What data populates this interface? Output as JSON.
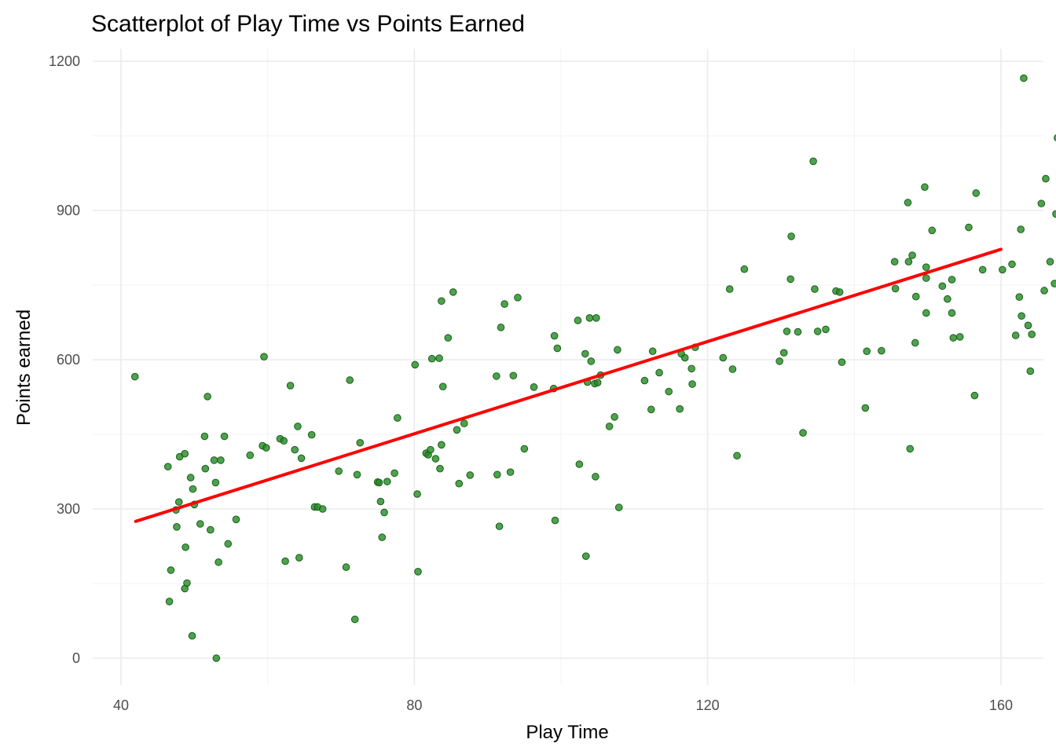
{
  "chart_data": {
    "type": "scatter",
    "title": "Scatterplot of Play Time vs Points Earned",
    "xlabel": "Play Time",
    "ylabel": "Points earned",
    "xlim": [
      38,
      166
    ],
    "ylim": [
      -60,
      1232
    ],
    "x_ticks": [
      40,
      80,
      120,
      160
    ],
    "y_ticks": [
      0,
      300,
      600,
      900,
      1200
    ],
    "grid": true,
    "legend": "none",
    "point_color": "#228B22",
    "line_color": "#ff0000",
    "fit_line": {
      "x": [
        42,
        160
      ],
      "y": [
        275,
        822
      ]
    },
    "points": [
      {
        "x": 41.9,
        "y": 566
      },
      {
        "x": 46.4,
        "y": 385
      },
      {
        "x": 46.6,
        "y": 114
      },
      {
        "x": 46.8,
        "y": 177
      },
      {
        "x": 47.5,
        "y": 298
      },
      {
        "x": 47.6,
        "y": 264
      },
      {
        "x": 47.9,
        "y": 314
      },
      {
        "x": 48.0,
        "y": 405
      },
      {
        "x": 48.7,
        "y": 411
      },
      {
        "x": 48.7,
        "y": 140
      },
      {
        "x": 48.8,
        "y": 223
      },
      {
        "x": 49.0,
        "y": 151
      },
      {
        "x": 49.5,
        "y": 363
      },
      {
        "x": 49.7,
        "y": 45
      },
      {
        "x": 49.8,
        "y": 340
      },
      {
        "x": 50.0,
        "y": 309
      },
      {
        "x": 50.8,
        "y": 270
      },
      {
        "x": 51.4,
        "y": 446
      },
      {
        "x": 51.5,
        "y": 381
      },
      {
        "x": 51.8,
        "y": 526
      },
      {
        "x": 52.2,
        "y": 258
      },
      {
        "x": 52.7,
        "y": 398
      },
      {
        "x": 52.9,
        "y": 353
      },
      {
        "x": 53.0,
        "y": 0
      },
      {
        "x": 53.3,
        "y": 193
      },
      {
        "x": 53.6,
        "y": 398
      },
      {
        "x": 54.1,
        "y": 446
      },
      {
        "x": 54.6,
        "y": 230
      },
      {
        "x": 55.7,
        "y": 279
      },
      {
        "x": 57.6,
        "y": 408
      },
      {
        "x": 59.3,
        "y": 427
      },
      {
        "x": 59.5,
        "y": 606
      },
      {
        "x": 59.8,
        "y": 423
      },
      {
        "x": 61.7,
        "y": 441
      },
      {
        "x": 62.2,
        "y": 437
      },
      {
        "x": 62.4,
        "y": 195
      },
      {
        "x": 63.1,
        "y": 548
      },
      {
        "x": 63.7,
        "y": 419
      },
      {
        "x": 64.1,
        "y": 466
      },
      {
        "x": 64.3,
        "y": 202
      },
      {
        "x": 64.6,
        "y": 402
      },
      {
        "x": 66.0,
        "y": 449
      },
      {
        "x": 66.4,
        "y": 304
      },
      {
        "x": 66.8,
        "y": 304
      },
      {
        "x": 67.5,
        "y": 300
      },
      {
        "x": 69.7,
        "y": 376
      },
      {
        "x": 70.7,
        "y": 183
      },
      {
        "x": 71.2,
        "y": 559
      },
      {
        "x": 71.9,
        "y": 78
      },
      {
        "x": 72.2,
        "y": 369
      },
      {
        "x": 72.6,
        "y": 433
      },
      {
        "x": 75.0,
        "y": 354
      },
      {
        "x": 75.2,
        "y": 353
      },
      {
        "x": 75.4,
        "y": 315
      },
      {
        "x": 75.6,
        "y": 243
      },
      {
        "x": 75.9,
        "y": 293
      },
      {
        "x": 76.3,
        "y": 355
      },
      {
        "x": 77.3,
        "y": 372
      },
      {
        "x": 77.7,
        "y": 483
      },
      {
        "x": 80.1,
        "y": 590
      },
      {
        "x": 80.4,
        "y": 330
      },
      {
        "x": 80.5,
        "y": 174
      },
      {
        "x": 81.6,
        "y": 412
      },
      {
        "x": 81.9,
        "y": 409
      },
      {
        "x": 82.2,
        "y": 419
      },
      {
        "x": 82.4,
        "y": 602
      },
      {
        "x": 82.9,
        "y": 401
      },
      {
        "x": 83.4,
        "y": 603
      },
      {
        "x": 83.5,
        "y": 381
      },
      {
        "x": 83.7,
        "y": 718
      },
      {
        "x": 83.7,
        "y": 429
      },
      {
        "x": 83.9,
        "y": 546
      },
      {
        "x": 84.6,
        "y": 644
      },
      {
        "x": 85.3,
        "y": 736
      },
      {
        "x": 85.8,
        "y": 459
      },
      {
        "x": 86.1,
        "y": 351
      },
      {
        "x": 86.8,
        "y": 472
      },
      {
        "x": 87.6,
        "y": 368
      },
      {
        "x": 91.2,
        "y": 567
      },
      {
        "x": 91.3,
        "y": 369
      },
      {
        "x": 91.6,
        "y": 265
      },
      {
        "x": 91.8,
        "y": 665
      },
      {
        "x": 92.3,
        "y": 712
      },
      {
        "x": 93.1,
        "y": 374
      },
      {
        "x": 93.5,
        "y": 568
      },
      {
        "x": 94.1,
        "y": 725
      },
      {
        "x": 95.0,
        "y": 421
      },
      {
        "x": 96.3,
        "y": 545
      },
      {
        "x": 99.0,
        "y": 542
      },
      {
        "x": 99.1,
        "y": 648
      },
      {
        "x": 99.2,
        "y": 277
      },
      {
        "x": 99.5,
        "y": 623
      },
      {
        "x": 102.3,
        "y": 679
      },
      {
        "x": 102.5,
        "y": 390
      },
      {
        "x": 103.3,
        "y": 612
      },
      {
        "x": 103.4,
        "y": 205
      },
      {
        "x": 103.6,
        "y": 555
      },
      {
        "x": 103.9,
        "y": 684
      },
      {
        "x": 104.1,
        "y": 597
      },
      {
        "x": 104.6,
        "y": 552
      },
      {
        "x": 104.7,
        "y": 365
      },
      {
        "x": 104.8,
        "y": 684
      },
      {
        "x": 105.0,
        "y": 554
      },
      {
        "x": 105.4,
        "y": 569
      },
      {
        "x": 106.6,
        "y": 466
      },
      {
        "x": 107.3,
        "y": 485
      },
      {
        "x": 107.7,
        "y": 620
      },
      {
        "x": 107.9,
        "y": 303
      },
      {
        "x": 111.4,
        "y": 558
      },
      {
        "x": 112.3,
        "y": 500
      },
      {
        "x": 112.5,
        "y": 617
      },
      {
        "x": 113.4,
        "y": 574
      },
      {
        "x": 114.7,
        "y": 536
      },
      {
        "x": 116.2,
        "y": 501
      },
      {
        "x": 116.4,
        "y": 612
      },
      {
        "x": 116.9,
        "y": 604
      },
      {
        "x": 117.8,
        "y": 582
      },
      {
        "x": 117.9,
        "y": 551
      },
      {
        "x": 118.3,
        "y": 625
      },
      {
        "x": 122.1,
        "y": 604
      },
      {
        "x": 123.0,
        "y": 742
      },
      {
        "x": 123.4,
        "y": 581
      },
      {
        "x": 124.0,
        "y": 407
      },
      {
        "x": 125.0,
        "y": 782
      },
      {
        "x": 129.8,
        "y": 597
      },
      {
        "x": 130.4,
        "y": 614
      },
      {
        "x": 130.8,
        "y": 657
      },
      {
        "x": 131.3,
        "y": 762
      },
      {
        "x": 131.4,
        "y": 848
      },
      {
        "x": 132.3,
        "y": 656
      },
      {
        "x": 133.0,
        "y": 453
      },
      {
        "x": 134.4,
        "y": 999
      },
      {
        "x": 134.6,
        "y": 742
      },
      {
        "x": 135.0,
        "y": 657
      },
      {
        "x": 136.1,
        "y": 661
      },
      {
        "x": 137.5,
        "y": 738
      },
      {
        "x": 138.0,
        "y": 736
      },
      {
        "x": 138.3,
        "y": 595
      },
      {
        "x": 141.5,
        "y": 503
      },
      {
        "x": 141.7,
        "y": 617
      },
      {
        "x": 143.7,
        "y": 618
      },
      {
        "x": 145.5,
        "y": 797
      },
      {
        "x": 145.6,
        "y": 743
      },
      {
        "x": 147.3,
        "y": 916
      },
      {
        "x": 147.4,
        "y": 797
      },
      {
        "x": 147.6,
        "y": 421
      },
      {
        "x": 147.9,
        "y": 810
      },
      {
        "x": 148.3,
        "y": 634
      },
      {
        "x": 148.4,
        "y": 727
      },
      {
        "x": 149.6,
        "y": 947
      },
      {
        "x": 149.8,
        "y": 786
      },
      {
        "x": 149.8,
        "y": 764
      },
      {
        "x": 149.8,
        "y": 694
      },
      {
        "x": 150.6,
        "y": 860
      },
      {
        "x": 152.0,
        "y": 748
      },
      {
        "x": 152.7,
        "y": 722
      },
      {
        "x": 153.3,
        "y": 761
      },
      {
        "x": 153.3,
        "y": 694
      },
      {
        "x": 153.5,
        "y": 644
      },
      {
        "x": 154.4,
        "y": 646
      },
      {
        "x": 155.6,
        "y": 866
      },
      {
        "x": 156.4,
        "y": 528
      },
      {
        "x": 156.6,
        "y": 935
      },
      {
        "x": 157.5,
        "y": 781
      },
      {
        "x": 160.2,
        "y": 781
      },
      {
        "x": 161.5,
        "y": 792
      },
      {
        "x": 162.0,
        "y": 649
      },
      {
        "x": 162.5,
        "y": 726
      },
      {
        "x": 162.7,
        "y": 862
      },
      {
        "x": 162.8,
        "y": 688
      },
      {
        "x": 163.1,
        "y": 1166
      },
      {
        "x": 163.7,
        "y": 669
      },
      {
        "x": 164.0,
        "y": 577
      },
      {
        "x": 164.2,
        "y": 651
      },
      {
        "x": 165.5,
        "y": 914
      },
      {
        "x": 165.9,
        "y": 739
      },
      {
        "x": 166.1,
        "y": 964
      },
      {
        "x": 166.7,
        "y": 797
      },
      {
        "x": 167.3,
        "y": 753
      },
      {
        "x": 167.5,
        "y": 893
      },
      {
        "x": 167.7,
        "y": 1046
      }
    ]
  }
}
